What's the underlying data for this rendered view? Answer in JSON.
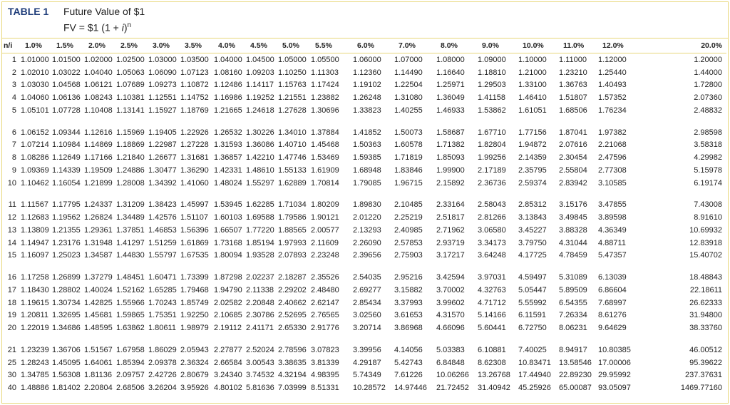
{
  "header": {
    "label": "TABLE 1",
    "title": "Future Value of $1",
    "formula": {
      "lhs": "FV = $1 (1 + ",
      "var": "i",
      "close": ")",
      "exp": "n"
    }
  },
  "table": {
    "columns": [
      "n/i",
      "1.0%",
      "1.5%",
      "2.0%",
      "2.5%",
      "3.0%",
      "3.5%",
      "4.0%",
      "4.5%",
      "5.0%",
      "5.5%",
      "6.0%",
      "7.0%",
      "8.0%",
      "9.0%",
      "10.0%",
      "11.0%",
      "12.0%",
      "20.0%"
    ],
    "groups": [
      [
        [
          "1",
          "1.01000",
          "1.01500",
          "1.02000",
          "1.02500",
          "1.03000",
          "1.03500",
          "1.04000",
          "1.04500",
          "1.05000",
          "1.05500",
          "1.06000",
          "1.07000",
          "1.08000",
          "1.09000",
          "1.10000",
          "1.11000",
          "1.12000",
          "1.20000"
        ],
        [
          "2",
          "1.02010",
          "1.03022",
          "1.04040",
          "1.05063",
          "1.06090",
          "1.07123",
          "1.08160",
          "1.09203",
          "1.10250",
          "1.11303",
          "1.12360",
          "1.14490",
          "1.16640",
          "1.18810",
          "1.21000",
          "1.23210",
          "1.25440",
          "1.44000"
        ],
        [
          "3",
          "1.03030",
          "1.04568",
          "1.06121",
          "1.07689",
          "1.09273",
          "1.10872",
          "1.12486",
          "1.14117",
          "1.15763",
          "1.17424",
          "1.19102",
          "1.22504",
          "1.25971",
          "1.29503",
          "1.33100",
          "1.36763",
          "1.40493",
          "1.72800"
        ],
        [
          "4",
          "1.04060",
          "1.06136",
          "1.08243",
          "1.10381",
          "1.12551",
          "1.14752",
          "1.16986",
          "1.19252",
          "1.21551",
          "1.23882",
          "1.26248",
          "1.31080",
          "1.36049",
          "1.41158",
          "1.46410",
          "1.51807",
          "1.57352",
          "2.07360"
        ],
        [
          "5",
          "1.05101",
          "1.07728",
          "1.10408",
          "1.13141",
          "1.15927",
          "1.18769",
          "1.21665",
          "1.24618",
          "1.27628",
          "1.30696",
          "1.33823",
          "1.40255",
          "1.46933",
          "1.53862",
          "1.61051",
          "1.68506",
          "1.76234",
          "2.48832"
        ]
      ],
      [
        [
          "6",
          "1.06152",
          "1.09344",
          "1.12616",
          "1.15969",
          "1.19405",
          "1.22926",
          "1.26532",
          "1.30226",
          "1.34010",
          "1.37884",
          "1.41852",
          "1.50073",
          "1.58687",
          "1.67710",
          "1.77156",
          "1.87041",
          "1.97382",
          "2.98598"
        ],
        [
          "7",
          "1.07214",
          "1.10984",
          "1.14869",
          "1.18869",
          "1.22987",
          "1.27228",
          "1.31593",
          "1.36086",
          "1.40710",
          "1.45468",
          "1.50363",
          "1.60578",
          "1.71382",
          "1.82804",
          "1.94872",
          "2.07616",
          "2.21068",
          "3.58318"
        ],
        [
          "8",
          "1.08286",
          "1.12649",
          "1.17166",
          "1.21840",
          "1.26677",
          "1.31681",
          "1.36857",
          "1.42210",
          "1.47746",
          "1.53469",
          "1.59385",
          "1.71819",
          "1.85093",
          "1.99256",
          "2.14359",
          "2.30454",
          "2.47596",
          "4.29982"
        ],
        [
          "9",
          "1.09369",
          "1.14339",
          "1.19509",
          "1.24886",
          "1.30477",
          "1.36290",
          "1.42331",
          "1.48610",
          "1.55133",
          "1.61909",
          "1.68948",
          "1.83846",
          "1.99900",
          "2.17189",
          "2.35795",
          "2.55804",
          "2.77308",
          "5.15978"
        ],
        [
          "10",
          "1.10462",
          "1.16054",
          "1.21899",
          "1.28008",
          "1.34392",
          "1.41060",
          "1.48024",
          "1.55297",
          "1.62889",
          "1.70814",
          "1.79085",
          "1.96715",
          "2.15892",
          "2.36736",
          "2.59374",
          "2.83942",
          "3.10585",
          "6.19174"
        ]
      ],
      [
        [
          "11",
          "1.11567",
          "1.17795",
          "1.24337",
          "1.31209",
          "1.38423",
          "1.45997",
          "1.53945",
          "1.62285",
          "1.71034",
          "1.80209",
          "1.89830",
          "2.10485",
          "2.33164",
          "2.58043",
          "2.85312",
          "3.15176",
          "3.47855",
          "7.43008"
        ],
        [
          "12",
          "1.12683",
          "1.19562",
          "1.26824",
          "1.34489",
          "1.42576",
          "1.51107",
          "1.60103",
          "1.69588",
          "1.79586",
          "1.90121",
          "2.01220",
          "2.25219",
          "2.51817",
          "2.81266",
          "3.13843",
          "3.49845",
          "3.89598",
          "8.91610"
        ],
        [
          "13",
          "1.13809",
          "1.21355",
          "1.29361",
          "1.37851",
          "1.46853",
          "1.56396",
          "1.66507",
          "1.77220",
          "1.88565",
          "2.00577",
          "2.13293",
          "2.40985",
          "2.71962",
          "3.06580",
          "3.45227",
          "3.88328",
          "4.36349",
          "10.69932"
        ],
        [
          "14",
          "1.14947",
          "1.23176",
          "1.31948",
          "1.41297",
          "1.51259",
          "1.61869",
          "1.73168",
          "1.85194",
          "1.97993",
          "2.11609",
          "2.26090",
          "2.57853",
          "2.93719",
          "3.34173",
          "3.79750",
          "4.31044",
          "4.88711",
          "12.83918"
        ],
        [
          "15",
          "1.16097",
          "1.25023",
          "1.34587",
          "1.44830",
          "1.55797",
          "1.67535",
          "1.80094",
          "1.93528",
          "2.07893",
          "2.23248",
          "2.39656",
          "2.75903",
          "3.17217",
          "3.64248",
          "4.17725",
          "4.78459",
          "5.47357",
          "15.40702"
        ]
      ],
      [
        [
          "16",
          "1.17258",
          "1.26899",
          "1.37279",
          "1.48451",
          "1.60471",
          "1.73399",
          "1.87298",
          "2.02237",
          "2.18287",
          "2.35526",
          "2.54035",
          "2.95216",
          "3.42594",
          "3.97031",
          "4.59497",
          "5.31089",
          "6.13039",
          "18.48843"
        ],
        [
          "17",
          "1.18430",
          "1.28802",
          "1.40024",
          "1.52162",
          "1.65285",
          "1.79468",
          "1.94790",
          "2.11338",
          "2.29202",
          "2.48480",
          "2.69277",
          "3.15882",
          "3.70002",
          "4.32763",
          "5.05447",
          "5.89509",
          "6.86604",
          "22.18611"
        ],
        [
          "18",
          "1.19615",
          "1.30734",
          "1.42825",
          "1.55966",
          "1.70243",
          "1.85749",
          "2.02582",
          "2.20848",
          "2.40662",
          "2.62147",
          "2.85434",
          "3.37993",
          "3.99602",
          "4.71712",
          "5.55992",
          "6.54355",
          "7.68997",
          "26.62333"
        ],
        [
          "19",
          "1.20811",
          "1.32695",
          "1.45681",
          "1.59865",
          "1.75351",
          "1.92250",
          "2.10685",
          "2.30786",
          "2.52695",
          "2.76565",
          "3.02560",
          "3.61653",
          "4.31570",
          "5.14166",
          "6.11591",
          "7.26334",
          "8.61276",
          "31.94800"
        ],
        [
          "20",
          "1.22019",
          "1.34686",
          "1.48595",
          "1.63862",
          "1.80611",
          "1.98979",
          "2.19112",
          "2.41171",
          "2.65330",
          "2.91776",
          "3.20714",
          "3.86968",
          "4.66096",
          "5.60441",
          "6.72750",
          "8.06231",
          "9.64629",
          "38.33760"
        ]
      ],
      [
        [
          "21",
          "1.23239",
          "1.36706",
          "1.51567",
          "1.67958",
          "1.86029",
          "2.05943",
          "2.27877",
          "2.52024",
          "2.78596",
          "3.07823",
          "3.39956",
          "4.14056",
          "5.03383",
          "6.10881",
          "7.40025",
          "8.94917",
          "10.80385",
          "46.00512"
        ],
        [
          "25",
          "1.28243",
          "1.45095",
          "1.64061",
          "1.85394",
          "2.09378",
          "2.36324",
          "2.66584",
          "3.00543",
          "3.38635",
          "3.81339",
          "4.29187",
          "5.42743",
          "6.84848",
          "8.62308",
          "10.83471",
          "13.58546",
          "17.00006",
          "95.39622"
        ],
        [
          "30",
          "1.34785",
          "1.56308",
          "1.81136",
          "2.09757",
          "2.42726",
          "2.80679",
          "3.24340",
          "3.74532",
          "4.32194",
          "4.98395",
          "5.74349",
          "7.61226",
          "10.06266",
          "13.26768",
          "17.44940",
          "22.89230",
          "29.95992",
          "237.37631"
        ],
        [
          "40",
          "1.48886",
          "1.81402",
          "2.20804",
          "2.68506",
          "3.26204",
          "3.95926",
          "4.80102",
          "5.81636",
          "7.03999",
          "8.51331",
          "10.28572",
          "14.97446",
          "21.72452",
          "31.40942",
          "45.25926",
          "65.00087",
          "93.05097",
          "1469.77160"
        ]
      ]
    ]
  }
}
